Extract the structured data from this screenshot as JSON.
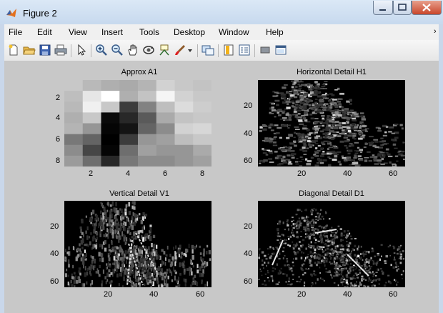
{
  "window": {
    "title": "Figure 2"
  },
  "menu": {
    "items": [
      "File",
      "Edit",
      "View",
      "Insert",
      "Tools",
      "Desktop",
      "Window",
      "Help"
    ]
  },
  "toolbar": {
    "tools": [
      "new-figure-icon",
      "open-file-icon",
      "save-icon",
      "print-icon",
      "pointer-icon",
      "zoom-in-icon",
      "zoom-out-icon",
      "pan-icon",
      "rotate-3d-icon",
      "data-cursor-icon",
      "brush-icon",
      "brush-dropdown-icon",
      "link-plot-icon",
      "colorbar-icon",
      "legend-icon",
      "hide-plot-tools-icon",
      "show-plot-tools-icon"
    ]
  },
  "colors": {
    "figure_bg": "#c8c8c8",
    "axes_bg": "#000000",
    "title_bar": "#c7d9ee",
    "close_button": "#c9462b"
  },
  "plots": [
    {
      "title": "Approx A1",
      "x_ticks": [
        "2",
        "4",
        "6",
        "8"
      ],
      "y_ticks": [
        "2",
        "4",
        "6",
        "8"
      ],
      "image": "grayscale approximation coefficients (8×8)"
    },
    {
      "title": "Horizontal Detail H1",
      "x_ticks": [
        "20",
        "40",
        "60"
      ],
      "y_ticks": [
        "20",
        "40",
        "60"
      ],
      "image": "horizontal detail coefficients"
    },
    {
      "title": "Vertical Detail V1",
      "x_ticks": [
        "20",
        "40",
        "60"
      ],
      "y_ticks": [
        "20",
        "40",
        "60"
      ],
      "image": "vertical detail coefficients"
    },
    {
      "title": "Diagonal Detail D1",
      "x_ticks": [
        "20",
        "40",
        "60"
      ],
      "y_ticks": [
        "20",
        "40",
        "60"
      ],
      "image": "diagonal detail coefficients"
    }
  ],
  "approx_grid": [
    [
      200,
      185,
      175,
      170,
      180,
      210,
      200,
      195
    ],
    [
      190,
      230,
      255,
      175,
      195,
      245,
      210,
      200
    ],
    [
      185,
      240,
      200,
      60,
      130,
      190,
      220,
      205
    ],
    [
      175,
      200,
      10,
      40,
      90,
      170,
      195,
      200
    ],
    [
      180,
      150,
      5,
      20,
      100,
      140,
      210,
      215
    ],
    [
      120,
      100,
      0,
      60,
      150,
      160,
      190,
      200
    ],
    [
      140,
      70,
      5,
      110,
      160,
      150,
      150,
      170
    ],
    [
      155,
      110,
      40,
      120,
      140,
      140,
      150,
      160
    ]
  ]
}
